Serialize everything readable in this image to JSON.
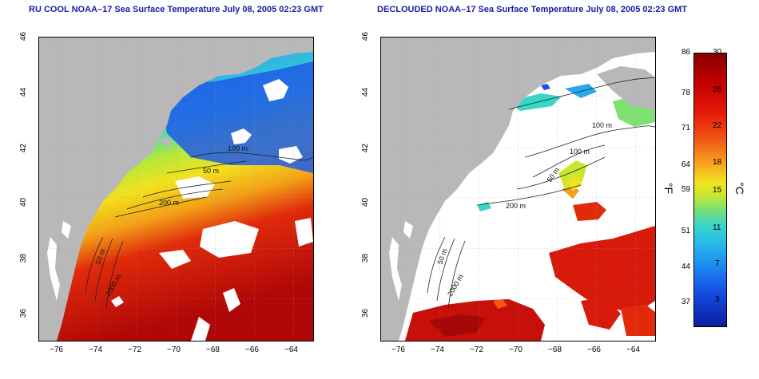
{
  "panels": [
    {
      "title": "RU COOL NOAA–17 Sea Surface Temperature July 08, 2005 02:23 GMT",
      "contours": [
        "100 m",
        "50 m",
        "200 m",
        "50 m",
        "2000 m"
      ]
    },
    {
      "title": "DECLOUDED NOAA–17 Sea Surface Temperature July 08, 2005 02:23 GMT",
      "contours": [
        "100 m",
        "100 m",
        "50 m",
        "200 m",
        "50 m",
        "2000 m"
      ]
    }
  ],
  "axes": {
    "x_ticks": [
      "−76",
      "−74",
      "−72",
      "−70",
      "−68",
      "−66",
      "−64"
    ],
    "y_ticks": [
      "46",
      "44",
      "42",
      "40",
      "38",
      "36"
    ]
  },
  "colorbar": {
    "fahrenheit_ticks": [
      "86",
      "78",
      "71",
      "64",
      "59",
      "51",
      "44",
      "37"
    ],
    "celsius_ticks": [
      "30",
      "26",
      "22",
      "18",
      "15",
      "11",
      "7",
      "3"
    ],
    "unit_f": "°F",
    "unit_c": "°C"
  },
  "colors": {
    "land": "#b8b8b8",
    "title": "#1a1aa6",
    "warm": "#c8100a",
    "cold": "#1450e6"
  }
}
